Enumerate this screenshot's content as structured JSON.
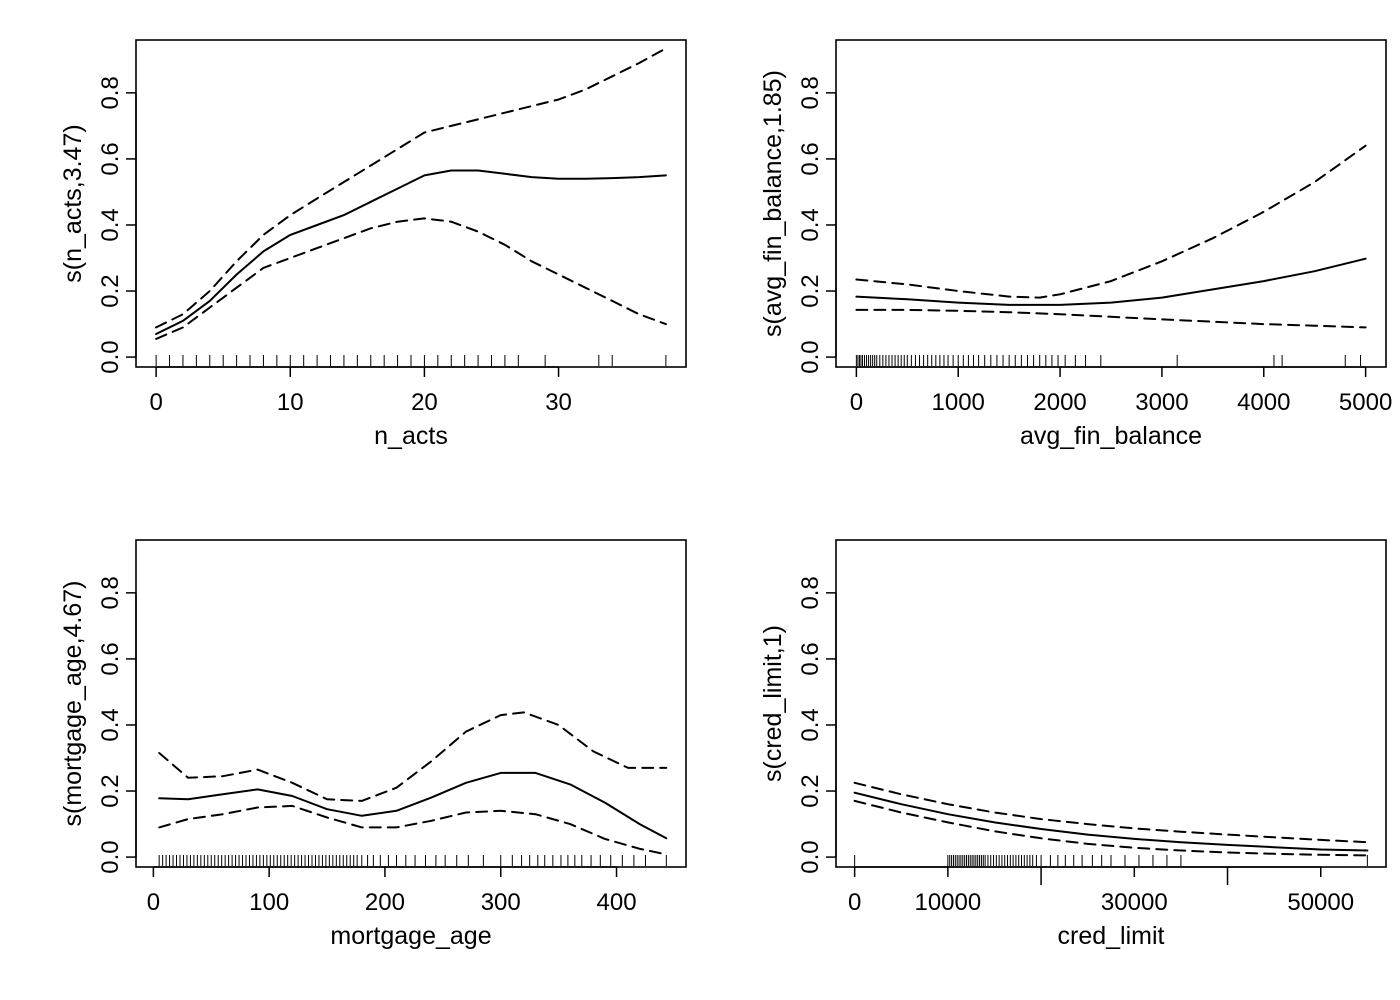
{
  "chart_data": [
    {
      "type": "line",
      "title": "",
      "xlabel": "n_acts",
      "ylabel": "s(n_acts,3.47)",
      "xlim": [
        -1.5,
        39.5
      ],
      "ylim": [
        -0.03,
        0.96
      ],
      "xticks": [
        0,
        10,
        20,
        30
      ],
      "xtick_labels": [
        "0",
        "10",
        "20",
        "30"
      ],
      "yticks": [
        0.0,
        0.2,
        0.4,
        0.6,
        0.8
      ],
      "ytick_labels": [
        "0.0",
        "0.2",
        "0.4",
        "0.6",
        "0.8"
      ],
      "grid": false,
      "series": [
        {
          "style": "solid",
          "x": [
            0,
            2,
            4,
            6,
            8,
            10,
            12,
            14,
            16,
            18,
            20,
            22,
            24,
            26,
            28,
            30,
            32,
            34,
            36,
            38
          ],
          "y": [
            0.07,
            0.11,
            0.17,
            0.25,
            0.32,
            0.37,
            0.4,
            0.43,
            0.47,
            0.51,
            0.55,
            0.565,
            0.565,
            0.555,
            0.545,
            0.54,
            0.54,
            0.542,
            0.545,
            0.55
          ]
        },
        {
          "style": "dashed",
          "x": [
            0,
            2,
            4,
            6,
            8,
            10,
            12,
            14,
            16,
            18,
            20,
            22,
            24,
            26,
            28,
            30,
            32,
            34,
            36,
            38
          ],
          "y": [
            0.09,
            0.13,
            0.2,
            0.29,
            0.37,
            0.43,
            0.48,
            0.53,
            0.58,
            0.63,
            0.68,
            0.7,
            0.72,
            0.74,
            0.76,
            0.78,
            0.81,
            0.85,
            0.89,
            0.935
          ]
        },
        {
          "style": "dashed",
          "x": [
            0,
            2,
            4,
            6,
            8,
            10,
            12,
            14,
            16,
            18,
            20,
            22,
            24,
            26,
            28,
            30,
            32,
            34,
            36,
            38
          ],
          "y": [
            0.055,
            0.09,
            0.15,
            0.21,
            0.27,
            0.3,
            0.33,
            0.36,
            0.39,
            0.41,
            0.42,
            0.41,
            0.38,
            0.34,
            0.29,
            0.25,
            0.21,
            0.17,
            0.13,
            0.1
          ]
        }
      ],
      "rug": [
        0,
        1,
        2,
        3,
        4,
        5,
        6,
        7,
        8,
        9,
        10,
        11,
        12,
        13,
        14,
        15,
        16,
        17,
        18,
        19,
        20,
        21,
        22,
        23,
        24,
        25,
        26,
        27,
        29,
        33,
        34,
        38
      ]
    },
    {
      "type": "line",
      "title": "",
      "xlabel": "avg_fin_balance",
      "ylabel": "s(avg_fin_balance,1.85)",
      "xlim": [
        -200,
        5200
      ],
      "ylim": [
        -0.03,
        0.96
      ],
      "xticks": [
        0,
        1000,
        2000,
        3000,
        4000,
        5000
      ],
      "xtick_labels": [
        "0",
        "1000",
        "2000",
        "3000",
        "4000",
        "5000"
      ],
      "yticks": [
        0.0,
        0.2,
        0.4,
        0.6,
        0.8
      ],
      "ytick_labels": [
        "0.0",
        "0.2",
        "0.4",
        "0.6",
        "0.8"
      ],
      "grid": false,
      "series": [
        {
          "style": "solid",
          "x": [
            0,
            500,
            1000,
            1500,
            2000,
            2500,
            3000,
            3500,
            4000,
            4500,
            5000
          ],
          "y": [
            0.183,
            0.175,
            0.165,
            0.158,
            0.158,
            0.165,
            0.18,
            0.205,
            0.23,
            0.26,
            0.298
          ]
        },
        {
          "style": "dashed",
          "x": [
            0,
            500,
            1000,
            1500,
            1800,
            2000,
            2500,
            3000,
            3500,
            4000,
            4500,
            5000
          ],
          "y": [
            0.235,
            0.22,
            0.2,
            0.183,
            0.18,
            0.19,
            0.23,
            0.29,
            0.36,
            0.44,
            0.53,
            0.64
          ]
        },
        {
          "style": "dashed",
          "x": [
            0,
            500,
            1000,
            1500,
            2000,
            2500,
            3000,
            3500,
            4000,
            4500,
            5000
          ],
          "y": [
            0.143,
            0.143,
            0.14,
            0.136,
            0.13,
            0.122,
            0.114,
            0.107,
            0.1,
            0.095,
            0.09
          ]
        }
      ],
      "rug": [
        0,
        15,
        30,
        45,
        60,
        80,
        100,
        120,
        140,
        160,
        180,
        200,
        230,
        260,
        290,
        320,
        350,
        380,
        410,
        440,
        470,
        500,
        540,
        580,
        620,
        660,
        700,
        740,
        780,
        820,
        860,
        900,
        950,
        1000,
        1050,
        1100,
        1150,
        1200,
        1260,
        1320,
        1380,
        1440,
        1500,
        1560,
        1620,
        1680,
        1740,
        1800,
        1860,
        1920,
        1980,
        2050,
        2150,
        2250,
        2400,
        3150,
        4100,
        4180,
        4800,
        4950
      ]
    },
    {
      "type": "line",
      "title": "",
      "xlabel": "mortgage_age",
      "ylabel": "s(mortgage_age,4.67)",
      "xlim": [
        -15,
        460
      ],
      "ylim": [
        -0.03,
        0.96
      ],
      "xticks": [
        0,
        100,
        200,
        300,
        400
      ],
      "xtick_labels": [
        "0",
        "100",
        "200",
        "300",
        "400"
      ],
      "yticks": [
        0.0,
        0.2,
        0.4,
        0.6,
        0.8
      ],
      "ytick_labels": [
        "0.0",
        "0.2",
        "0.4",
        "0.6",
        "0.8"
      ],
      "grid": false,
      "series": [
        {
          "style": "solid",
          "x": [
            5,
            30,
            60,
            90,
            120,
            150,
            180,
            210,
            240,
            270,
            300,
            330,
            360,
            390,
            420,
            443
          ],
          "y": [
            0.178,
            0.175,
            0.19,
            0.205,
            0.185,
            0.145,
            0.125,
            0.14,
            0.18,
            0.225,
            0.255,
            0.255,
            0.22,
            0.165,
            0.1,
            0.057
          ]
        },
        {
          "style": "dashed",
          "x": [
            5,
            30,
            60,
            90,
            120,
            150,
            180,
            210,
            240,
            270,
            300,
            320,
            350,
            380,
            410,
            443
          ],
          "y": [
            0.315,
            0.24,
            0.245,
            0.265,
            0.225,
            0.175,
            0.17,
            0.21,
            0.29,
            0.38,
            0.43,
            0.438,
            0.4,
            0.32,
            0.27,
            0.27
          ]
        },
        {
          "style": "dashed",
          "x": [
            5,
            30,
            60,
            90,
            120,
            150,
            180,
            210,
            240,
            270,
            300,
            330,
            360,
            390,
            420,
            443
          ],
          "y": [
            0.09,
            0.115,
            0.13,
            0.15,
            0.155,
            0.12,
            0.09,
            0.09,
            0.11,
            0.135,
            0.14,
            0.13,
            0.1,
            0.055,
            0.025,
            0.008
          ]
        }
      ],
      "rug": [
        5,
        8,
        11,
        14,
        17,
        20,
        23,
        26,
        29,
        32,
        35,
        38,
        41,
        44,
        47,
        50,
        53,
        56,
        59,
        62,
        65,
        68,
        71,
        74,
        77,
        80,
        83,
        86,
        89,
        92,
        95,
        98,
        101,
        104,
        107,
        110,
        113,
        116,
        119,
        122,
        125,
        128,
        131,
        134,
        137,
        140,
        143,
        146,
        149,
        152,
        155,
        158,
        161,
        164,
        167,
        170,
        173,
        176,
        180,
        185,
        190,
        196,
        203,
        210,
        218,
        226,
        235,
        244,
        252,
        262,
        272,
        285,
        300,
        310,
        318,
        325,
        332,
        338,
        345,
        352,
        358,
        364,
        370,
        378,
        386,
        395,
        405,
        415,
        425,
        443
      ]
    },
    {
      "type": "line",
      "title": "",
      "xlabel": "cred_limit",
      "ylabel": "s(cred_limit,1)",
      "xlim": [
        -2000,
        57000
      ],
      "ylim": [
        -0.03,
        0.96
      ],
      "xticks": [
        0,
        10000,
        30000,
        50000
      ],
      "xtick_labels": [
        "0",
        "10000",
        "30000",
        "50000"
      ],
      "minor_xticks": [
        20000,
        40000
      ],
      "yticks": [
        0.0,
        0.2,
        0.4,
        0.6,
        0.8
      ],
      "ytick_labels": [
        "0.0",
        "0.2",
        "0.4",
        "0.6",
        "0.8"
      ],
      "grid": false,
      "series": [
        {
          "style": "solid",
          "x": [
            0,
            5000,
            10000,
            15000,
            20000,
            25000,
            30000,
            35000,
            40000,
            45000,
            50000,
            55000
          ],
          "y": [
            0.195,
            0.16,
            0.13,
            0.105,
            0.085,
            0.068,
            0.055,
            0.045,
            0.037,
            0.03,
            0.023,
            0.02
          ]
        },
        {
          "style": "dashed",
          "x": [
            0,
            5000,
            10000,
            15000,
            20000,
            25000,
            30000,
            35000,
            40000,
            45000,
            50000,
            55000
          ],
          "y": [
            0.225,
            0.19,
            0.16,
            0.135,
            0.115,
            0.1,
            0.087,
            0.077,
            0.068,
            0.06,
            0.052,
            0.045
          ]
        },
        {
          "style": "dashed",
          "x": [
            0,
            5000,
            10000,
            15000,
            20000,
            25000,
            30000,
            35000,
            40000,
            45000,
            50000,
            55000
          ],
          "y": [
            0.17,
            0.135,
            0.105,
            0.078,
            0.057,
            0.04,
            0.028,
            0.02,
            0.014,
            0.01,
            0.007,
            0.005
          ]
        }
      ],
      "rug": [
        0,
        10000,
        10200,
        10400,
        10600,
        10800,
        11000,
        11200,
        11400,
        11600,
        11800,
        12000,
        12200,
        12400,
        12600,
        12800,
        13000,
        13200,
        13400,
        13600,
        13800,
        14000,
        14300,
        14600,
        14900,
        15200,
        15500,
        15800,
        16100,
        16400,
        16700,
        17000,
        17300,
        17600,
        17900,
        18200,
        18500,
        18800,
        19100,
        19500,
        20000,
        21000,
        21800,
        22600,
        23500,
        24400,
        25500,
        26500,
        27500,
        29000,
        30500,
        32000,
        33500,
        35000,
        55000
      ]
    }
  ]
}
